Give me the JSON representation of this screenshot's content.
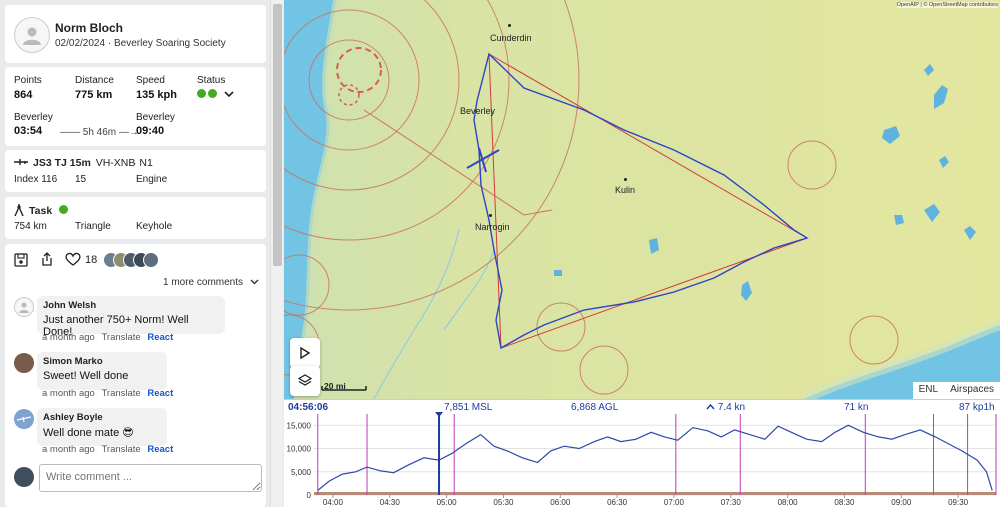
{
  "pilot": {
    "name": "Norm Bloch",
    "date": "02/02/2024",
    "club": "Beverley Soaring Society",
    "separator": "·"
  },
  "stats": {
    "points_label": "Points",
    "points": "864",
    "distance_label": "Distance",
    "distance": "775 km",
    "speed_label": "Speed",
    "speed": "135 kph",
    "status_label": "Status",
    "start_place": "Beverley",
    "start_time": "03:54",
    "duration": "5h 46m",
    "end_place": "Beverley",
    "end_time": "09:40",
    "status_colors": [
      "#44aa22",
      "#44aa22"
    ]
  },
  "glider": {
    "type": "JS3 TJ 15m",
    "rego": "VH-XNB",
    "dot": "·",
    "comp": "N1",
    "index": "Index 116",
    "span": "15",
    "engine": "Engine"
  },
  "task": {
    "label": "Task",
    "status_color": "#44aa22",
    "distance": "754 km",
    "shape": "Triangle",
    "turn": "Keyhole"
  },
  "social": {
    "likes": "18",
    "more_comments": "1 more comments"
  },
  "comments": [
    {
      "name": "John Welsh",
      "text": "Just another 750+ Norm! Well Done!",
      "time": "a month ago",
      "translate": "Translate",
      "react": "React"
    },
    {
      "name": "Simon Marko",
      "text": "Sweet! Well done",
      "time": "a month ago",
      "translate": "Translate",
      "react": "React"
    },
    {
      "name": "Ashley Boyle",
      "text": "Well done mate 😎",
      "time": "a month ago",
      "translate": "Translate",
      "react": "React"
    }
  ],
  "comment_input": {
    "placeholder": "Write comment ..."
  },
  "map": {
    "attribution": "OpenAIP | © OpenStreetMap contributors",
    "towns": [
      {
        "name": "Cunderdin"
      },
      {
        "name": "Beverley"
      },
      {
        "name": "Kulin"
      },
      {
        "name": "Narrogin"
      }
    ],
    "scale": "20 mi",
    "tabs": [
      "ENL",
      "Airspaces"
    ]
  },
  "readout": {
    "time": "04:56:06",
    "msl": "7,851 MSL",
    "agl": "6,868 AGL",
    "vario": "7.4 kn",
    "groundspeed": "71 kn",
    "speed_kph": "87 kp1h"
  },
  "chart_data": {
    "type": "line",
    "y_ticks": [
      "15,000",
      "10,000",
      "5,000",
      "0"
    ],
    "x_ticks": [
      "04:00",
      "04:30",
      "05:00",
      "05:30",
      "06:00",
      "06:30",
      "07:00",
      "07:30",
      "08:00",
      "08:30",
      "09:00",
      "09:30"
    ],
    "ylim": [
      0,
      17000
    ],
    "xlim_minutes": [
      230,
      590
    ],
    "series": [
      {
        "values_time_minutes": [
          232,
          238,
          245,
          252,
          258,
          265,
          272,
          280,
          288,
          296,
          303,
          310,
          318,
          325,
          332,
          340,
          348,
          355,
          362,
          370,
          378,
          385,
          392,
          400,
          408,
          415,
          422,
          430,
          438,
          445,
          452,
          460,
          468,
          475,
          482,
          490,
          498,
          505,
          512,
          520,
          528,
          535,
          542,
          550,
          558,
          565,
          572,
          580,
          585,
          588
        ],
        "values_altitude_ft": [
          1000,
          3000,
          4500,
          5000,
          6000,
          5200,
          4800,
          6500,
          8000,
          7500,
          9000,
          11000,
          13000,
          10500,
          9500,
          8000,
          7000,
          9500,
          10500,
          10000,
          11500,
          12500,
          11500,
          12000,
          13500,
          12500,
          11800,
          14500,
          13800,
          12500,
          14000,
          13000,
          12000,
          14800,
          13500,
          12000,
          11500,
          13500,
          15000,
          13500,
          12500,
          12000,
          13000,
          14000,
          12500,
          11000,
          9500,
          7500,
          5000,
          1000
        ]
      }
    ],
    "markers_magenta_minutes": [
      232,
      258,
      304,
      421,
      455,
      521,
      557,
      575,
      590,
      593
    ],
    "cursor_minutes": 296
  }
}
